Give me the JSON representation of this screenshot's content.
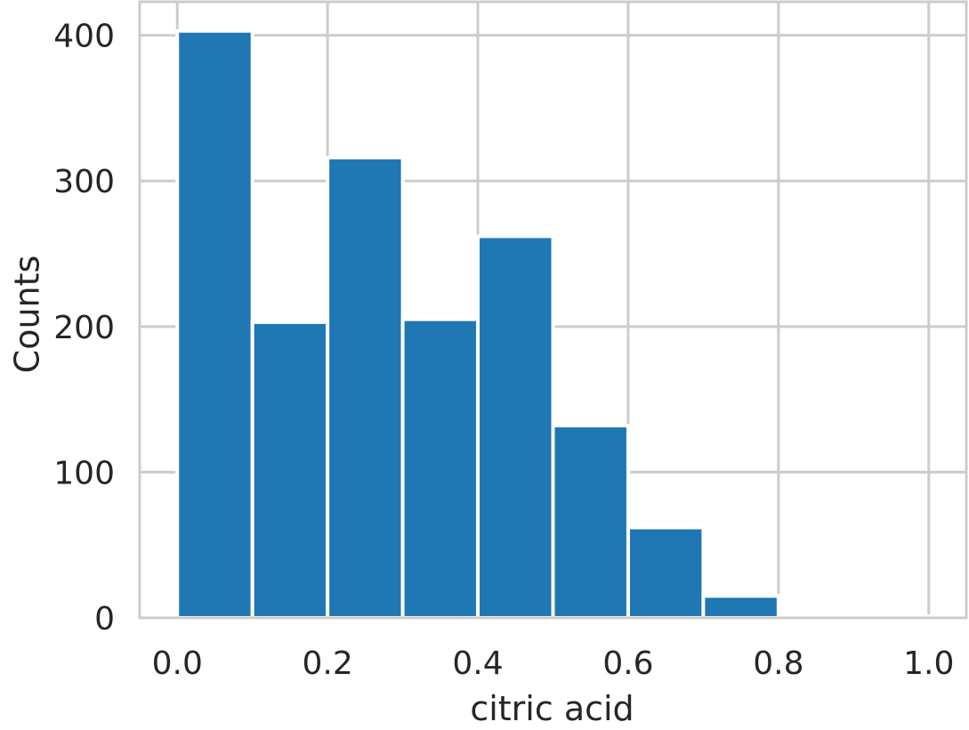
{
  "chart_data": {
    "type": "bar",
    "title": "",
    "xlabel": "citric acid",
    "ylabel": "Counts",
    "bin_edges": [
      0.0,
      0.1,
      0.2,
      0.3,
      0.4,
      0.5,
      0.6,
      0.7,
      0.8,
      0.9,
      1.0
    ],
    "values": [
      403,
      203,
      316,
      205,
      262,
      132,
      62,
      15,
      0,
      1
    ],
    "xlim": [
      -0.05,
      1.05
    ],
    "ylim": [
      0,
      423
    ],
    "x_ticks": [
      0.0,
      0.2,
      0.4,
      0.6,
      0.8,
      1.0
    ],
    "x_tick_labels": [
      "0.0",
      "0.2",
      "0.4",
      "0.6",
      "0.8",
      "1.0"
    ],
    "y_ticks": [
      0,
      100,
      200,
      300,
      400
    ],
    "y_tick_labels": [
      "0",
      "100",
      "200",
      "300",
      "400"
    ],
    "grid": true,
    "colors": {
      "bar": "#1f77b4",
      "grid": "#cccccc",
      "axes": "#cccccc",
      "text": "#262626"
    }
  }
}
